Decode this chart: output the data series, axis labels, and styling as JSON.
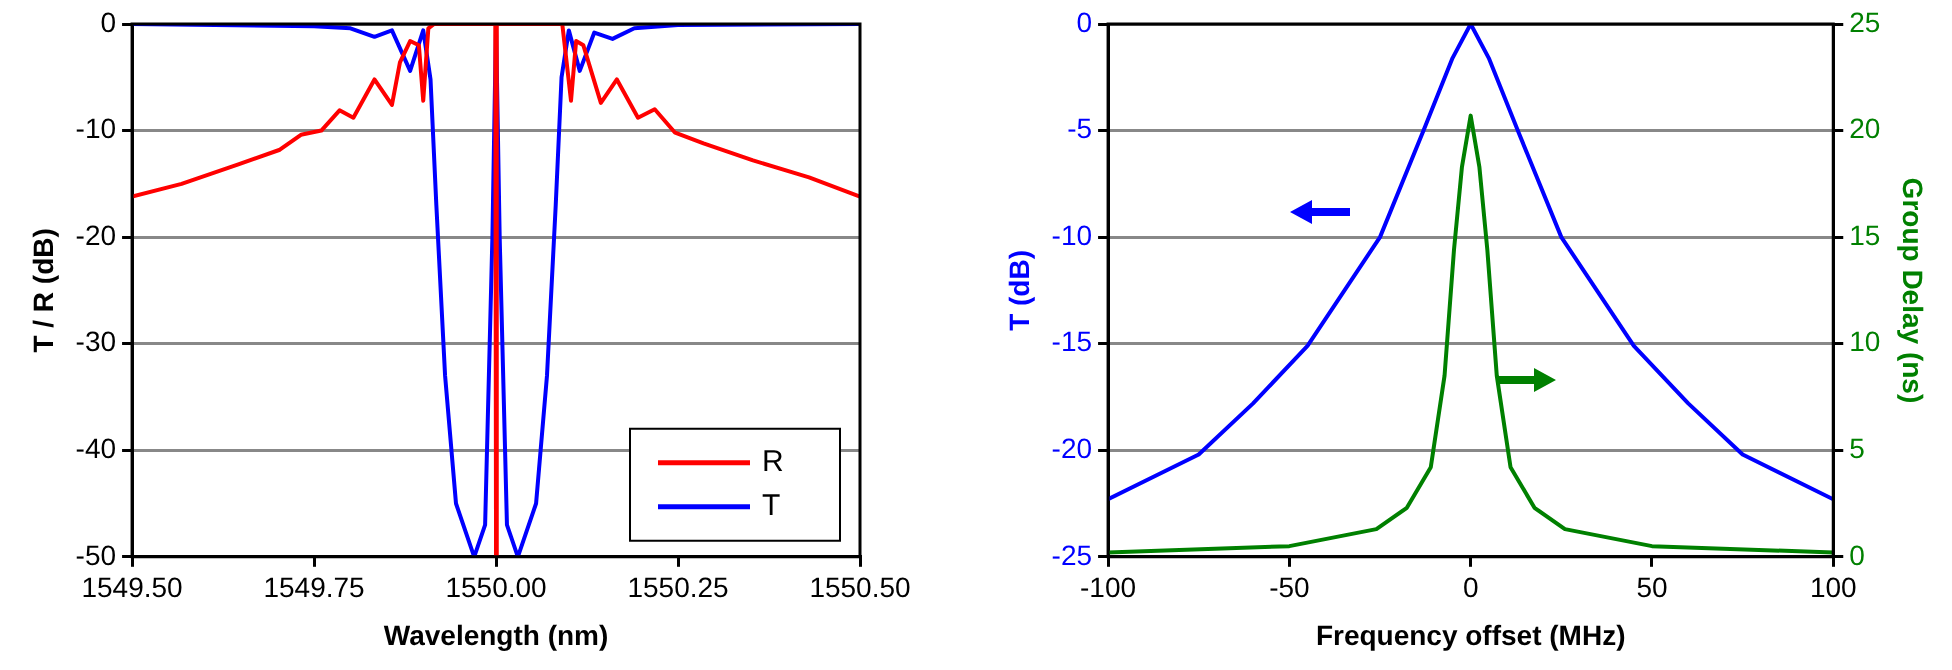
{
  "chart_data": [
    {
      "type": "line",
      "xlabel": "Wavelength (nm)",
      "ylabel": "T / R (dB)",
      "xlim": [
        1549.5,
        1550.5
      ],
      "xticks": [
        {
          "value": 1549.5,
          "label": "1549.50"
        },
        {
          "value": 1549.75,
          "label": "1549.75"
        },
        {
          "value": 1550,
          "label": "1550.00"
        },
        {
          "value": 1550.25,
          "label": "1550.25"
        },
        {
          "value": 1550.5,
          "label": "1550.50"
        }
      ],
      "ylim": [
        -50,
        0
      ],
      "yticks": [
        0,
        -10,
        -20,
        -30,
        -40,
        -50
      ],
      "grid": "y",
      "legend": "bottom right",
      "marker": "none",
      "line_style": "solid",
      "series": [
        {
          "name": "R",
          "color": "#ff0000",
          "x": [
            1549.5,
            1549.568,
            1549.645,
            1549.703,
            1549.732,
            1549.76,
            1549.785,
            1549.804,
            1549.833,
            1549.857,
            1549.868,
            1549.882,
            1549.894,
            1549.9,
            1549.907,
            1549.915,
            1549.999,
            1550,
            1550.001,
            1550.091,
            1550.103,
            1550.11,
            1550.12,
            1550.144,
            1550.166,
            1550.195,
            1550.218,
            1550.246,
            1550.285,
            1550.353,
            1550.43,
            1550.5
          ],
          "values": [
            -16.2,
            -15,
            -13.2,
            -11.8,
            -10.4,
            -10,
            -8.1,
            -8.8,
            -5.2,
            -7.6,
            -3.6,
            -1.6,
            -2,
            -7.2,
            -0.4,
            0,
            0,
            -50,
            0,
            0,
            -7.2,
            -1.6,
            -2,
            -7.4,
            -5.2,
            -8.8,
            -8,
            -10.2,
            -11.2,
            -12.8,
            -14.4,
            -16.2
          ]
        },
        {
          "name": "T",
          "color": "#0000ff",
          "x": [
            1549.5,
            1549.75,
            1549.8,
            1549.833,
            1549.857,
            1549.882,
            1549.9,
            1549.91,
            1549.918,
            1549.93,
            1549.945,
            1549.97,
            1549.985,
            1549.995,
            1550,
            1550.005,
            1550.015,
            1550.03,
            1550.055,
            1550.07,
            1550.082,
            1550.09,
            1550.1,
            1550.115,
            1550.135,
            1550.16,
            1550.19,
            1550.25,
            1550.5
          ],
          "values": [
            0,
            -0.2,
            -0.4,
            -1.2,
            -0.6,
            -4.4,
            -0.6,
            -5.2,
            -17,
            -33,
            -45,
            -50,
            -47,
            -20,
            0,
            -20,
            -47,
            -50,
            -45,
            -33,
            -17,
            -5,
            -0.6,
            -4.4,
            -0.8,
            -1.4,
            -0.4,
            -0.1,
            0
          ]
        }
      ]
    },
    {
      "type": "line",
      "xlabel": "Frequency offset (MHz)",
      "ylabel": "T (dB)",
      "y2label": "Group Delay (ns)",
      "xlim": [
        -100,
        100
      ],
      "xticks": [
        -100,
        -50,
        0,
        50,
        100
      ],
      "ylim": [
        -25,
        0
      ],
      "yticks": [
        0,
        -5,
        -10,
        -15,
        -20,
        -25
      ],
      "y2lim": [
        0,
        25
      ],
      "y2ticks": [
        0,
        5,
        10,
        15,
        20,
        25
      ],
      "grid": "y",
      "marker": "none",
      "line_style": "solid",
      "series": [
        {
          "color": "#0000ff",
          "x": [
            -100,
            -75,
            -60,
            -45,
            -25,
            -13,
            -5,
            0,
            5,
            13,
            25,
            45,
            60,
            75,
            100
          ],
          "values": [
            -22.3,
            -20.2,
            -17.8,
            -15.1,
            -10,
            -5,
            -1.6,
            0,
            -1.6,
            -5,
            -10,
            -15.1,
            -17.8,
            -20.2,
            -22.3
          ]
        },
        {
          "color": "#008000",
          "axis": "y2",
          "x": [
            -100,
            -50,
            -26,
            -17.6,
            -11,
            -7.2,
            -4.6,
            -2.4,
            0,
            2.4,
            4.6,
            7.2,
            11,
            17.6,
            26,
            50,
            100
          ],
          "values": [
            0.2,
            0.5,
            1.3,
            2.3,
            4.2,
            8.5,
            14.4,
            18.3,
            20.7,
            18.3,
            14.4,
            8.5,
            4.2,
            2.3,
            1.3,
            0.5,
            0.2
          ]
        }
      ]
    }
  ]
}
